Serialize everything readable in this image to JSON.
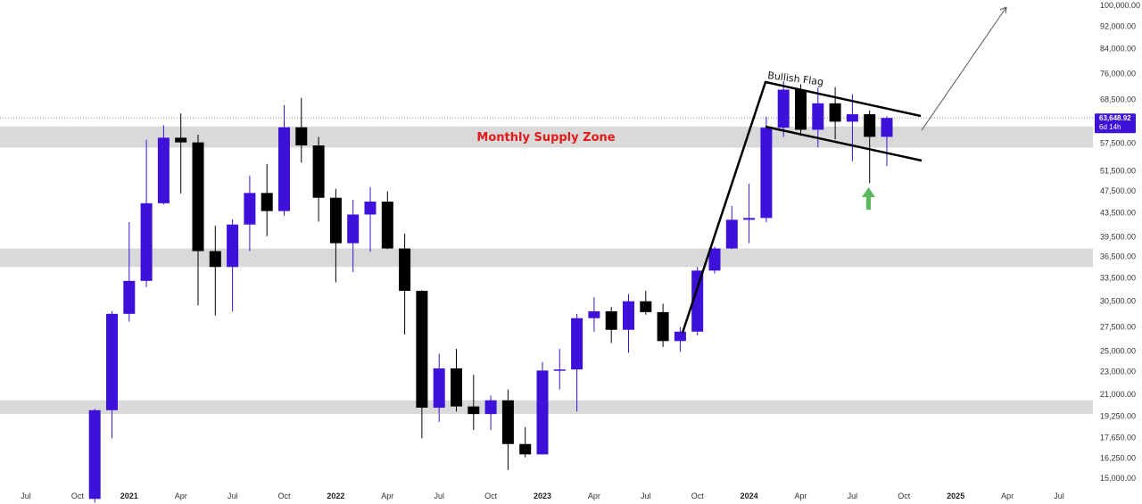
{
  "chart_data": {
    "type": "candlestick",
    "axis": {
      "y_scale": "log",
      "y_ticks": [
        100000,
        92000,
        84000,
        76000,
        68500,
        63648.92,
        57500,
        51500,
        47500,
        43500,
        39500,
        36500,
        33500,
        30500,
        27500,
        25000,
        23000,
        21000,
        19250,
        17650,
        16250,
        15000
      ],
      "y_tick_labels": [
        "100,000.00",
        "92,000.00",
        "84,000.00",
        "76,000.00",
        "68,500.00",
        "",
        "57,500.00",
        "51,500.00",
        "47,500.00",
        "43,500.00",
        "39,500.00",
        "36,500.00",
        "33,500.00",
        "30,500.00",
        "27,500.00",
        "25,000.00",
        "23,000.00",
        "21,000.00",
        "19,250.00",
        "17,650.00",
        "16,250.00",
        "15,000.00"
      ],
      "x_ticks": [
        {
          "label": "Jul",
          "month": "2020-07",
          "year": false
        },
        {
          "label": "Oct",
          "month": "2020-10",
          "year": false
        },
        {
          "label": "2021",
          "month": "2021-01",
          "year": true
        },
        {
          "label": "Apr",
          "month": "2021-04",
          "year": false
        },
        {
          "label": "Jul",
          "month": "2021-07",
          "year": false
        },
        {
          "label": "Oct",
          "month": "2021-10",
          "year": false
        },
        {
          "label": "2022",
          "month": "2022-01",
          "year": true
        },
        {
          "label": "Apr",
          "month": "2022-04",
          "year": false
        },
        {
          "label": "Jul",
          "month": "2022-07",
          "year": false
        },
        {
          "label": "Oct",
          "month": "2022-10",
          "year": false
        },
        {
          "label": "2023",
          "month": "2023-01",
          "year": true
        },
        {
          "label": "Apr",
          "month": "2023-04",
          "year": false
        },
        {
          "label": "Jul",
          "month": "2023-07",
          "year": false
        },
        {
          "label": "Oct",
          "month": "2023-10",
          "year": false
        },
        {
          "label": "2024",
          "month": "2024-01",
          "year": true
        },
        {
          "label": "Apr",
          "month": "2024-04",
          "year": false
        },
        {
          "label": "Jul",
          "month": "2024-07",
          "year": false
        },
        {
          "label": "Oct",
          "month": "2024-10",
          "year": false
        },
        {
          "label": "2025",
          "month": "2025-01",
          "year": true
        },
        {
          "label": "Apr",
          "month": "2025-04",
          "year": false
        },
        {
          "label": "Jul",
          "month": "2025-07",
          "year": false
        }
      ]
    },
    "current_price": {
      "value": 63648.92,
      "label": "63,648.92",
      "countdown": "6d 14h"
    },
    "zones": [
      {
        "label": "Monthly Supply Zone",
        "from": 56500,
        "to": 61500
      },
      {
        "label": "",
        "from": 35000,
        "to": 37700
      },
      {
        "label": "",
        "from": 19400,
        "to": 20500
      }
    ],
    "annotations": {
      "flag_label": "Bullish Flag"
    },
    "colors": {
      "bullish": "#3d11d9",
      "bearish": "#000000",
      "zone_fill": "#d9d9d9",
      "zone_label": "#e31a1a",
      "price_badge": "#3d11d9",
      "arrow_up": "#5cb85c"
    },
    "candles": [
      {
        "t": "2020-11",
        "o": 13800,
        "h": 19800,
        "l": 13600,
        "c": 19700
      },
      {
        "t": "2020-12",
        "o": 19700,
        "h": 29300,
        "l": 17600,
        "c": 29000
      },
      {
        "t": "2021-01",
        "o": 29000,
        "h": 41900,
        "l": 28100,
        "c": 33100
      },
      {
        "t": "2021-02",
        "o": 33100,
        "h": 58300,
        "l": 32300,
        "c": 45200
      },
      {
        "t": "2021-03",
        "o": 45200,
        "h": 61800,
        "l": 45000,
        "c": 58800
      },
      {
        "t": "2021-04",
        "o": 58800,
        "h": 64800,
        "l": 47000,
        "c": 57700
      },
      {
        "t": "2021-05",
        "o": 57700,
        "h": 59500,
        "l": 30000,
        "c": 37300
      },
      {
        "t": "2021-06",
        "o": 37300,
        "h": 41300,
        "l": 28800,
        "c": 35000
      },
      {
        "t": "2021-07",
        "o": 35000,
        "h": 42400,
        "l": 29300,
        "c": 41500
      },
      {
        "t": "2021-08",
        "o": 41500,
        "h": 50500,
        "l": 37300,
        "c": 47100
      },
      {
        "t": "2021-09",
        "o": 47100,
        "h": 52900,
        "l": 39600,
        "c": 43800
      },
      {
        "t": "2021-10",
        "o": 43800,
        "h": 67000,
        "l": 43000,
        "c": 61300
      },
      {
        "t": "2021-11",
        "o": 61300,
        "h": 69000,
        "l": 53200,
        "c": 57000
      },
      {
        "t": "2021-12",
        "o": 57000,
        "h": 59000,
        "l": 42000,
        "c": 46200
      },
      {
        "t": "2022-01",
        "o": 46200,
        "h": 47900,
        "l": 32900,
        "c": 38500
      },
      {
        "t": "2022-02",
        "o": 38500,
        "h": 45800,
        "l": 34300,
        "c": 43200
      },
      {
        "t": "2022-03",
        "o": 43200,
        "h": 48200,
        "l": 37200,
        "c": 45500
      },
      {
        "t": "2022-04",
        "o": 45500,
        "h": 47400,
        "l": 37600,
        "c": 37700
      },
      {
        "t": "2022-05",
        "o": 37700,
        "h": 40000,
        "l": 26700,
        "c": 31800
      },
      {
        "t": "2022-06",
        "o": 31800,
        "h": 31900,
        "l": 17600,
        "c": 19900
      },
      {
        "t": "2022-07",
        "o": 19900,
        "h": 24700,
        "l": 18800,
        "c": 23300
      },
      {
        "t": "2022-08",
        "o": 23300,
        "h": 25200,
        "l": 19600,
        "c": 20000
      },
      {
        "t": "2022-09",
        "o": 20000,
        "h": 22700,
        "l": 18200,
        "c": 19400
      },
      {
        "t": "2022-10",
        "o": 19400,
        "h": 20900,
        "l": 18200,
        "c": 20500
      },
      {
        "t": "2022-11",
        "o": 20500,
        "h": 21400,
        "l": 15500,
        "c": 17200
      },
      {
        "t": "2022-12",
        "o": 17200,
        "h": 18400,
        "l": 16300,
        "c": 16500
      },
      {
        "t": "2023-01",
        "o": 16500,
        "h": 23900,
        "l": 16500,
        "c": 23100
      },
      {
        "t": "2023-02",
        "o": 23100,
        "h": 25200,
        "l": 21400,
        "c": 23200
      },
      {
        "t": "2023-03",
        "o": 23200,
        "h": 29000,
        "l": 19600,
        "c": 28500
      },
      {
        "t": "2023-04",
        "o": 28500,
        "h": 31000,
        "l": 27000,
        "c": 29300
      },
      {
        "t": "2023-05",
        "o": 29300,
        "h": 29800,
        "l": 25800,
        "c": 27200
      },
      {
        "t": "2023-06",
        "o": 27200,
        "h": 31400,
        "l": 24800,
        "c": 30500
      },
      {
        "t": "2023-07",
        "o": 30500,
        "h": 31800,
        "l": 28900,
        "c": 29200
      },
      {
        "t": "2023-08",
        "o": 29200,
        "h": 30200,
        "l": 25400,
        "c": 26000
      },
      {
        "t": "2023-09",
        "o": 26000,
        "h": 27500,
        "l": 24900,
        "c": 27000
      },
      {
        "t": "2023-10",
        "o": 27000,
        "h": 35000,
        "l": 26600,
        "c": 34500
      },
      {
        "t": "2023-11",
        "o": 34500,
        "h": 38000,
        "l": 34100,
        "c": 37700
      },
      {
        "t": "2023-12",
        "o": 37700,
        "h": 44700,
        "l": 37600,
        "c": 42300
      },
      {
        "t": "2024-01",
        "o": 42300,
        "h": 48900,
        "l": 38500,
        "c": 42600
      },
      {
        "t": "2024-02",
        "o": 42600,
        "h": 64000,
        "l": 41900,
        "c": 61200
      },
      {
        "t": "2024-03",
        "o": 61200,
        "h": 73800,
        "l": 59000,
        "c": 71300
      },
      {
        "t": "2024-04",
        "o": 71300,
        "h": 72800,
        "l": 59200,
        "c": 60700
      },
      {
        "t": "2024-05",
        "o": 60700,
        "h": 71900,
        "l": 56600,
        "c": 67500
      },
      {
        "t": "2024-06",
        "o": 67500,
        "h": 72000,
        "l": 58400,
        "c": 62700
      },
      {
        "t": "2024-07",
        "o": 62700,
        "h": 70000,
        "l": 53500,
        "c": 64600
      },
      {
        "t": "2024-08",
        "o": 64600,
        "h": 65600,
        "l": 49000,
        "c": 59000
      },
      {
        "t": "2024-09",
        "o": 59000,
        "h": 64100,
        "l": 52500,
        "c": 63648.92
      }
    ]
  }
}
